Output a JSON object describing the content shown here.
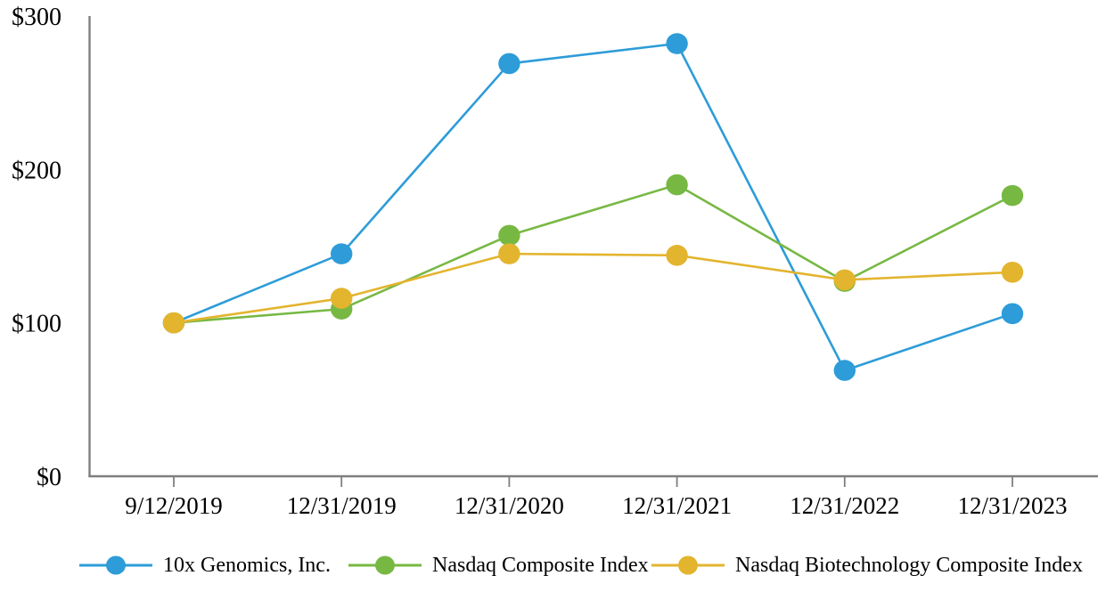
{
  "page": {
    "background": "#ffffff"
  },
  "chart_data": {
    "type": "line",
    "title": "",
    "x_labels": [
      "9/12/2019",
      "12/31/2019",
      "12/31/2020",
      "12/31/2021",
      "12/31/2022",
      "12/31/2023"
    ],
    "y_tick_labels": [
      "$0",
      "$100",
      "$200",
      "$300"
    ],
    "y_tick_values": [
      0,
      100,
      200,
      300
    ],
    "ylim": [
      0,
      300
    ],
    "grid": false,
    "legend_position": "bottom",
    "axis_color": "#7f7f7f",
    "text_color": "#000000",
    "series": [
      {
        "name": "10x Genomics, Inc.",
        "color": "#2D9CD8",
        "values": [
          100,
          145,
          269,
          282,
          69,
          106
        ]
      },
      {
        "name": "Nasdaq Composite Index",
        "color": "#77B843",
        "values": [
          100,
          109,
          157,
          190,
          127,
          183
        ]
      },
      {
        "name": "Nasdaq Biotechnology Composite Index",
        "color": "#E3B42E",
        "values": [
          100,
          116,
          145,
          144,
          128,
          133
        ]
      }
    ]
  }
}
